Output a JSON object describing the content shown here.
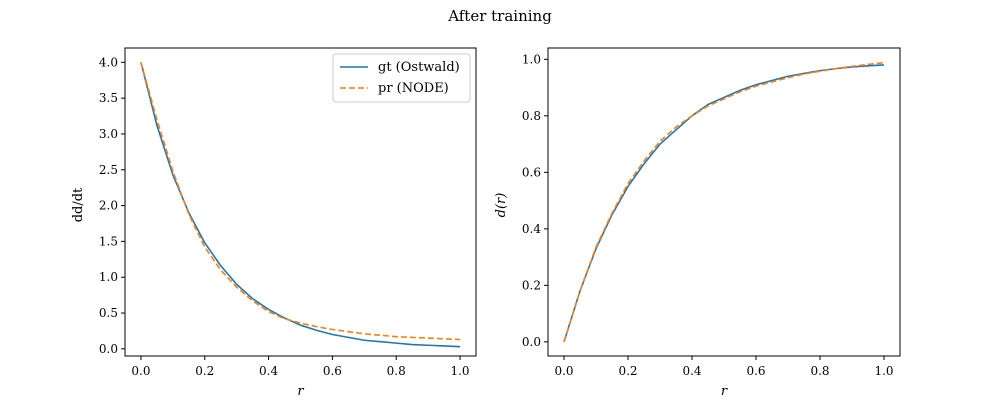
{
  "figure": {
    "title": "After training"
  },
  "chart_data": [
    {
      "type": "line",
      "xlabel": "r",
      "ylabel": "dd/dt",
      "xlim": [
        -0.05,
        1.05
      ],
      "ylim": [
        -0.1,
        4.2
      ],
      "xticks": [
        0.0,
        0.2,
        0.4,
        0.6,
        0.8,
        1.0
      ],
      "yticks": [
        0.0,
        0.5,
        1.0,
        1.5,
        2.0,
        2.5,
        3.0,
        3.5,
        4.0
      ],
      "legend": {
        "position": "top-right",
        "entries": [
          "gt (Ostwald)",
          "pr (NODE)"
        ]
      },
      "series": [
        {
          "name": "gt (Ostwald)",
          "color": "#1f77b4",
          "style": "solid",
          "x": [
            0.0,
            0.05,
            0.1,
            0.15,
            0.2,
            0.25,
            0.3,
            0.35,
            0.4,
            0.45,
            0.5,
            0.55,
            0.6,
            0.65,
            0.7,
            0.75,
            0.8,
            0.85,
            0.9,
            0.95,
            1.0
          ],
          "values": [
            4.0,
            3.12,
            2.43,
            1.9,
            1.48,
            1.16,
            0.9,
            0.7,
            0.55,
            0.43,
            0.33,
            0.26,
            0.2,
            0.16,
            0.12,
            0.1,
            0.08,
            0.06,
            0.05,
            0.04,
            0.03
          ]
        },
        {
          "name": "pr (NODE)",
          "color": "#ff7f0e",
          "style": "dashed",
          "x": [
            0.0,
            0.05,
            0.1,
            0.15,
            0.2,
            0.25,
            0.3,
            0.35,
            0.4,
            0.45,
            0.5,
            0.55,
            0.6,
            0.65,
            0.7,
            0.75,
            0.8,
            0.85,
            0.9,
            0.95,
            1.0
          ],
          "values": [
            4.0,
            3.2,
            2.48,
            1.88,
            1.42,
            1.1,
            0.86,
            0.67,
            0.52,
            0.42,
            0.36,
            0.31,
            0.27,
            0.24,
            0.21,
            0.19,
            0.17,
            0.16,
            0.15,
            0.14,
            0.13
          ]
        }
      ]
    },
    {
      "type": "line",
      "xlabel": "r",
      "ylabel": "d(r)",
      "xlim": [
        -0.05,
        1.05
      ],
      "ylim": [
        -0.05,
        1.04
      ],
      "xticks": [
        0.0,
        0.2,
        0.4,
        0.6,
        0.8,
        1.0
      ],
      "yticks": [
        0.0,
        0.2,
        0.4,
        0.6,
        0.8,
        1.0
      ],
      "series": [
        {
          "name": "gt (Ostwald)",
          "color": "#1f77b4",
          "style": "solid",
          "x": [
            0.0,
            0.05,
            0.1,
            0.15,
            0.2,
            0.25,
            0.3,
            0.35,
            0.4,
            0.45,
            0.5,
            0.55,
            0.6,
            0.65,
            0.7,
            0.75,
            0.8,
            0.85,
            0.9,
            0.95,
            1.0
          ],
          "values": [
            0.0,
            0.18,
            0.33,
            0.45,
            0.55,
            0.63,
            0.7,
            0.75,
            0.8,
            0.84,
            0.865,
            0.89,
            0.91,
            0.925,
            0.94,
            0.95,
            0.96,
            0.967,
            0.973,
            0.977,
            0.98
          ]
        },
        {
          "name": "pr (NODE)",
          "color": "#ff7f0e",
          "style": "dashed",
          "x": [
            0.0,
            0.05,
            0.1,
            0.15,
            0.2,
            0.25,
            0.3,
            0.35,
            0.4,
            0.45,
            0.5,
            0.55,
            0.6,
            0.65,
            0.7,
            0.75,
            0.8,
            0.85,
            0.9,
            0.95,
            1.0
          ],
          "values": [
            0.0,
            0.18,
            0.335,
            0.455,
            0.56,
            0.64,
            0.71,
            0.76,
            0.8,
            0.835,
            0.86,
            0.885,
            0.905,
            0.92,
            0.935,
            0.948,
            0.958,
            0.967,
            0.975,
            0.982,
            0.988
          ]
        }
      ]
    }
  ]
}
